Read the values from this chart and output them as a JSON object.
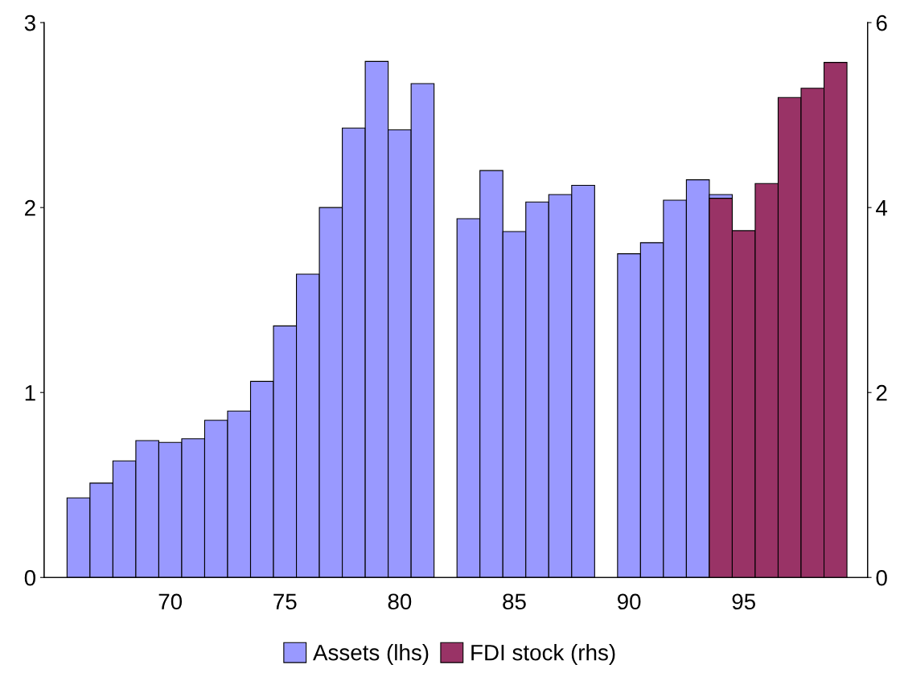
{
  "chart_data": {
    "type": "bar",
    "x": [
      66,
      67,
      68,
      69,
      70,
      71,
      72,
      73,
      74,
      75,
      76,
      77,
      78,
      79,
      80,
      81,
      82,
      83,
      84,
      85,
      86,
      87,
      88,
      89,
      90,
      91,
      92,
      93,
      94,
      95,
      96,
      97,
      98,
      99
    ],
    "series": [
      {
        "name": "Assets (lhs)",
        "color": "#9999ff",
        "values": [
          0.43,
          0.51,
          0.63,
          0.74,
          0.73,
          0.75,
          0.85,
          0.9,
          1.06,
          1.36,
          1.64,
          2.0,
          2.43,
          2.79,
          2.42,
          2.67,
          null,
          1.94,
          2.2,
          1.87,
          2.03,
          2.07,
          2.12,
          null,
          1.75,
          1.81,
          2.04,
          2.15,
          2.07,
          null,
          null,
          null,
          null,
          null
        ]
      },
      {
        "name": "FDI stock (rhs)",
        "color": "#993366",
        "axis": "y2",
        "values": [
          null,
          null,
          null,
          null,
          null,
          null,
          null,
          null,
          null,
          null,
          null,
          null,
          null,
          null,
          null,
          null,
          null,
          null,
          null,
          null,
          null,
          null,
          null,
          null,
          null,
          null,
          null,
          null,
          4.1,
          3.75,
          4.26,
          5.19,
          5.29,
          5.57
        ]
      }
    ],
    "xlim": [
      64.5,
      100.4
    ],
    "xticks": [
      70,
      75,
      80,
      85,
      90,
      95
    ],
    "ylim": [
      0,
      3
    ],
    "yticks": [
      0,
      1,
      2,
      3
    ],
    "y2lim": [
      0,
      6
    ],
    "y2ticks": [
      0,
      2,
      4,
      6
    ],
    "legend": "bottom",
    "grid": false
  }
}
